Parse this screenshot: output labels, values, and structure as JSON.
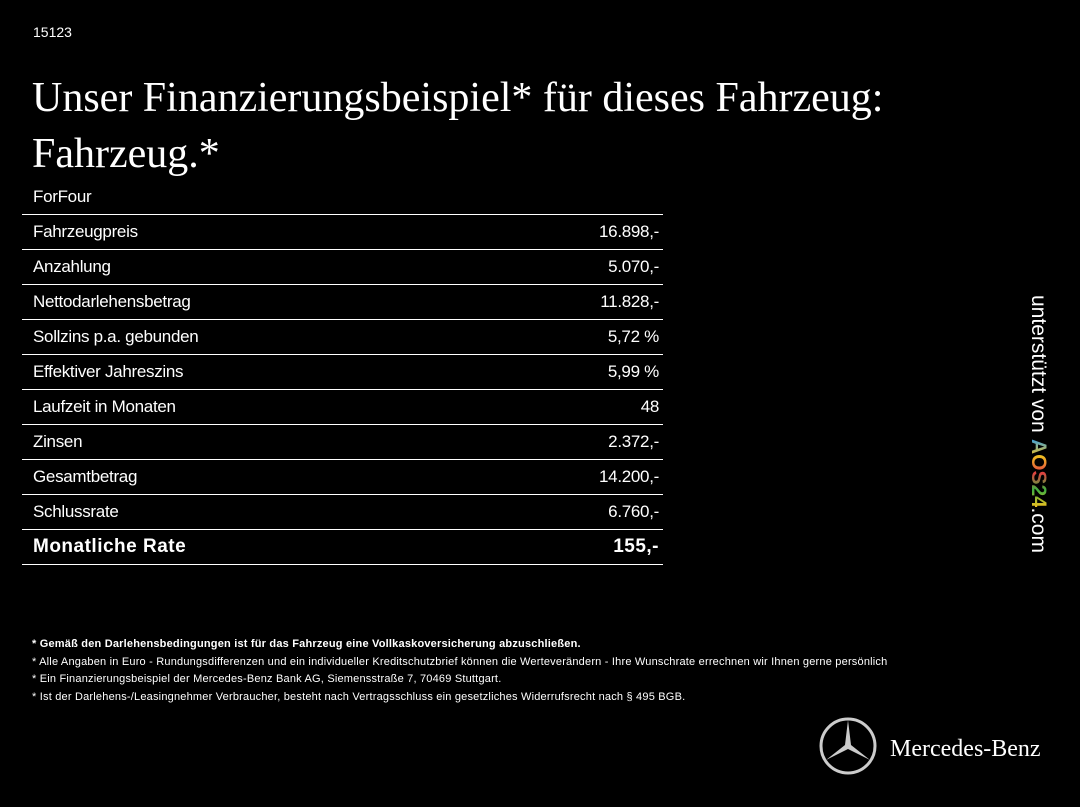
{
  "header": {
    "id": "15123",
    "title_lines": [
      "Unser Finanzierungsbeispiel* für dieses Fahrzeug:",
      "Fahrzeug.*"
    ]
  },
  "table": {
    "heading": "ForFour",
    "rows": [
      [
        "Fahrzeugpreis",
        "16.898,-"
      ],
      [
        "Anzahlung",
        "5.070,-"
      ],
      [
        "Nettodarlehensbetrag",
        "11.828,-"
      ],
      [
        "Sollzins p.a. gebunden",
        "5,72 %"
      ],
      [
        "Effektiver Jahreszins",
        "5,99 %"
      ],
      [
        "Laufzeit in Monaten",
        "48"
      ],
      [
        "Zinsen",
        "2.372,-"
      ],
      [
        "Gesamtbetrag",
        "14.200,-"
      ],
      [
        "Schlussrate",
        "6.760,-"
      ],
      [
        "Monatliche Rate",
        "155,-"
      ]
    ]
  },
  "footnotes": [
    "* Gemäß den Darlehensbedingungen ist für das Fahrzeug eine Vollkaskoversicherung abzuschließen.",
    "* Alle Angaben in Euro - Rundungsdifferenzen und ein individueller Kreditschutzbrief können die Werteverändern - Ihre Wunschrate errechnen wir Ihnen gerne persönlich",
    "* Ein Finanzierungsbeispiel der Mercedes-Benz Bank AG, Siemensstraße 7, 70469 Stuttgart.",
    "* Ist der Darlehens-/Leasingnehmer Verbraucher, besteht nach Vertragsschluss ein gesetzliches Widerrufsrecht nach § 495 BGB."
  ],
  "sidebar": {
    "prefix": "unterstützt von",
    "logo": "AOS24",
    "suffix": ".com"
  },
  "brand": "Mercedes-Benz"
}
